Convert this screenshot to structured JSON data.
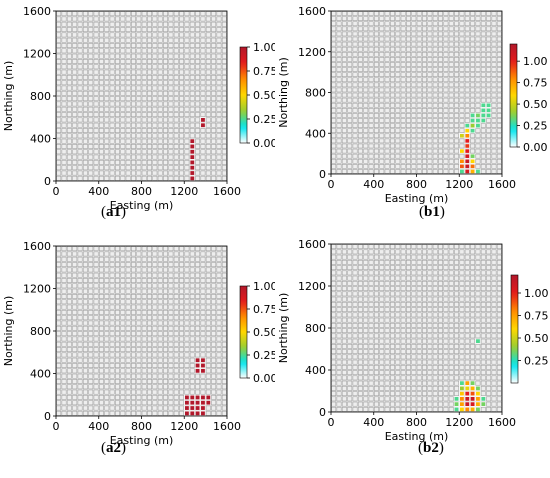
{
  "colors": {
    "grid_line": "#a0a0a0",
    "cell_fill": "#eeeeee",
    "colormap_stops": [
      "#ffffff",
      "#00e5ee",
      "#9acd32",
      "#ffd700",
      "#ff8c00",
      "#e41a1c",
      "#b2182b"
    ]
  },
  "chart_data": [
    {
      "id": "a1",
      "caption_letter": "a",
      "caption_num": "1",
      "type": "heatmap",
      "title": "",
      "xlabel": "Easting (m)",
      "ylabel": "Northing (m)",
      "xlim": [
        0,
        1600
      ],
      "ylim": [
        0,
        1600
      ],
      "cell_size": 50,
      "xticks": [
        "0",
        "400",
        "800",
        "1200",
        "1600"
      ],
      "yticks": [
        "0",
        "400",
        "800",
        "1200",
        "1600"
      ],
      "colorbar": {
        "range": [
          0,
          1.0
        ],
        "ticks": [
          "0.00",
          "0.25",
          "0.50",
          "0.75",
          "1.00"
        ]
      },
      "cells": [
        {
          "x": 1250,
          "y": 0,
          "v": 1
        },
        {
          "x": 1250,
          "y": 50,
          "v": 1
        },
        {
          "x": 1250,
          "y": 100,
          "v": 1
        },
        {
          "x": 1250,
          "y": 150,
          "v": 1
        },
        {
          "x": 1250,
          "y": 200,
          "v": 1
        },
        {
          "x": 1250,
          "y": 250,
          "v": 1
        },
        {
          "x": 1250,
          "y": 300,
          "v": 1
        },
        {
          "x": 1250,
          "y": 350,
          "v": 1
        },
        {
          "x": 1350,
          "y": 500,
          "v": 1
        },
        {
          "x": 1350,
          "y": 550,
          "v": 1
        }
      ]
    },
    {
      "id": "b1",
      "caption_letter": "b",
      "caption_num": "1",
      "type": "heatmap",
      "title": "",
      "xlabel": "Easting (m)",
      "ylabel": "Northing (m)",
      "xlim": [
        0,
        1600
      ],
      "ylim": [
        0,
        1600
      ],
      "cell_size": 50,
      "xticks": [
        "0",
        "400",
        "800",
        "1200",
        "1600"
      ],
      "yticks": [
        "0",
        "400",
        "800",
        "1200",
        "1600"
      ],
      "colorbar": {
        "range": [
          0,
          1.2
        ],
        "ticks": [
          "0.00",
          "0.25",
          "0.50",
          "0.75",
          "1.00"
        ]
      },
      "cells": [
        {
          "x": 1200,
          "y": 0,
          "v": 0.3
        },
        {
          "x": 1250,
          "y": 0,
          "v": 1.05
        },
        {
          "x": 1300,
          "y": 0,
          "v": 0.7
        },
        {
          "x": 1350,
          "y": 0,
          "v": 0.3
        },
        {
          "x": 1200,
          "y": 50,
          "v": 0.9
        },
        {
          "x": 1250,
          "y": 50,
          "v": 1.1
        },
        {
          "x": 1300,
          "y": 50,
          "v": 0.85
        },
        {
          "x": 1200,
          "y": 100,
          "v": 0.8
        },
        {
          "x": 1250,
          "y": 100,
          "v": 1.1
        },
        {
          "x": 1300,
          "y": 100,
          "v": 0.6
        },
        {
          "x": 1250,
          "y": 150,
          "v": 1.05
        },
        {
          "x": 1300,
          "y": 150,
          "v": 0.35
        },
        {
          "x": 1200,
          "y": 200,
          "v": 0.6
        },
        {
          "x": 1250,
          "y": 200,
          "v": 1.0
        },
        {
          "x": 1250,
          "y": 250,
          "v": 0.95
        },
        {
          "x": 1250,
          "y": 300,
          "v": 1.0
        },
        {
          "x": 1200,
          "y": 350,
          "v": 0.5
        },
        {
          "x": 1250,
          "y": 350,
          "v": 0.8
        },
        {
          "x": 1250,
          "y": 400,
          "v": 0.6
        },
        {
          "x": 1300,
          "y": 400,
          "v": 0.3
        },
        {
          "x": 1250,
          "y": 450,
          "v": 0.3
        },
        {
          "x": 1300,
          "y": 450,
          "v": 0.4
        },
        {
          "x": 1350,
          "y": 450,
          "v": 0.3
        },
        {
          "x": 1300,
          "y": 500,
          "v": 0.3
        },
        {
          "x": 1350,
          "y": 500,
          "v": 0.3
        },
        {
          "x": 1400,
          "y": 500,
          "v": 0.3
        },
        {
          "x": 1300,
          "y": 550,
          "v": 0.3
        },
        {
          "x": 1350,
          "y": 550,
          "v": 0.35
        },
        {
          "x": 1400,
          "y": 550,
          "v": 0.3
        },
        {
          "x": 1450,
          "y": 550,
          "v": 0.3
        },
        {
          "x": 1400,
          "y": 600,
          "v": 0.3
        },
        {
          "x": 1450,
          "y": 600,
          "v": 0.3
        },
        {
          "x": 1400,
          "y": 650,
          "v": 0.3
        },
        {
          "x": 1450,
          "y": 650,
          "v": 0.3
        }
      ]
    },
    {
      "id": "a2",
      "caption_letter": "a",
      "caption_num": "2",
      "type": "heatmap",
      "title": "",
      "xlabel": "Easting (m)",
      "ylabel": "Northing (m)",
      "xlim": [
        0,
        1600
      ],
      "ylim": [
        0,
        1600
      ],
      "cell_size": 50,
      "xticks": [
        "0",
        "400",
        "800",
        "1200",
        "1600"
      ],
      "yticks": [
        "0",
        "400",
        "800",
        "1200",
        "1600"
      ],
      "colorbar": {
        "range": [
          0,
          1.0
        ],
        "ticks": [
          "0.00",
          "0.25",
          "0.50",
          "0.75",
          "1.00"
        ]
      },
      "cells": [
        {
          "x": 1200,
          "y": 0,
          "v": 1
        },
        {
          "x": 1250,
          "y": 0,
          "v": 1
        },
        {
          "x": 1300,
          "y": 0,
          "v": 1
        },
        {
          "x": 1350,
          "y": 0,
          "v": 1
        },
        {
          "x": 1200,
          "y": 50,
          "v": 1
        },
        {
          "x": 1250,
          "y": 50,
          "v": 1
        },
        {
          "x": 1300,
          "y": 50,
          "v": 1
        },
        {
          "x": 1350,
          "y": 50,
          "v": 1
        },
        {
          "x": 1200,
          "y": 100,
          "v": 1
        },
        {
          "x": 1250,
          "y": 100,
          "v": 1
        },
        {
          "x": 1300,
          "y": 100,
          "v": 1
        },
        {
          "x": 1350,
          "y": 100,
          "v": 1
        },
        {
          "x": 1400,
          "y": 100,
          "v": 1
        },
        {
          "x": 1200,
          "y": 150,
          "v": 1
        },
        {
          "x": 1250,
          "y": 150,
          "v": 1
        },
        {
          "x": 1300,
          "y": 150,
          "v": 1
        },
        {
          "x": 1350,
          "y": 150,
          "v": 1
        },
        {
          "x": 1400,
          "y": 150,
          "v": 1
        },
        {
          "x": 1300,
          "y": 400,
          "v": 1
        },
        {
          "x": 1350,
          "y": 400,
          "v": 1
        },
        {
          "x": 1300,
          "y": 450,
          "v": 1
        },
        {
          "x": 1350,
          "y": 450,
          "v": 1
        },
        {
          "x": 1300,
          "y": 500,
          "v": 1
        },
        {
          "x": 1350,
          "y": 500,
          "v": 1
        }
      ]
    },
    {
      "id": "b2",
      "caption_letter": "b",
      "caption_num": "2",
      "type": "heatmap",
      "title": "",
      "xlabel": "Easting (m)",
      "ylabel": "Northing (m)",
      "xlim": [
        0,
        1600
      ],
      "ylim": [
        0,
        1600
      ],
      "cell_size": 50,
      "xticks": [
        "0",
        "400",
        "800",
        "1200",
        "1600"
      ],
      "yticks": [
        "0",
        "400",
        "800",
        "1200",
        "1600"
      ],
      "colorbar": {
        "range": [
          0,
          1.2
        ],
        "ticks": [
          "0.25",
          "0.50",
          "0.75",
          "1.00"
        ]
      },
      "cells": [
        {
          "x": 1150,
          "y": 0,
          "v": 0.3
        },
        {
          "x": 1200,
          "y": 0,
          "v": 0.6
        },
        {
          "x": 1250,
          "y": 0,
          "v": 0.8
        },
        {
          "x": 1300,
          "y": 0,
          "v": 0.7
        },
        {
          "x": 1350,
          "y": 0,
          "v": 0.35
        },
        {
          "x": 1150,
          "y": 50,
          "v": 0.35
        },
        {
          "x": 1200,
          "y": 50,
          "v": 0.75
        },
        {
          "x": 1250,
          "y": 50,
          "v": 1.1
        },
        {
          "x": 1300,
          "y": 50,
          "v": 1.05
        },
        {
          "x": 1350,
          "y": 50,
          "v": 0.7
        },
        {
          "x": 1400,
          "y": 50,
          "v": 0.35
        },
        {
          "x": 1150,
          "y": 100,
          "v": 0.3
        },
        {
          "x": 1200,
          "y": 100,
          "v": 0.8
        },
        {
          "x": 1250,
          "y": 100,
          "v": 1.1
        },
        {
          "x": 1300,
          "y": 100,
          "v": 1.1
        },
        {
          "x": 1350,
          "y": 100,
          "v": 0.75
        },
        {
          "x": 1400,
          "y": 100,
          "v": 0.3
        },
        {
          "x": 1200,
          "y": 150,
          "v": 0.65
        },
        {
          "x": 1250,
          "y": 150,
          "v": 1.0
        },
        {
          "x": 1300,
          "y": 150,
          "v": 0.9
        },
        {
          "x": 1350,
          "y": 150,
          "v": 0.6
        },
        {
          "x": 1200,
          "y": 200,
          "v": 0.4
        },
        {
          "x": 1250,
          "y": 200,
          "v": 0.55
        },
        {
          "x": 1300,
          "y": 200,
          "v": 0.7
        },
        {
          "x": 1350,
          "y": 200,
          "v": 0.35
        },
        {
          "x": 1200,
          "y": 250,
          "v": 0.3
        },
        {
          "x": 1250,
          "y": 250,
          "v": 0.75
        },
        {
          "x": 1300,
          "y": 250,
          "v": 0.35
        },
        {
          "x": 1350,
          "y": 650,
          "v": 0.3
        }
      ]
    }
  ]
}
